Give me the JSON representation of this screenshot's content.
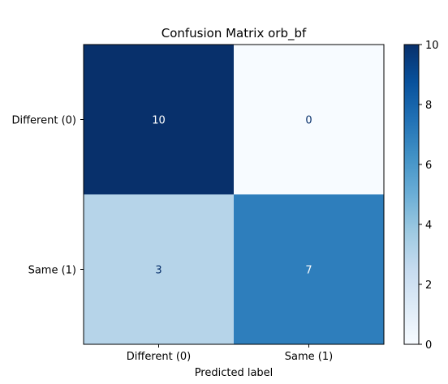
{
  "chart_data": {
    "type": "heatmap",
    "title": "Confusion Matrix orb_bf",
    "xlabel": "Predicted label",
    "ylabel": "",
    "x_categories": [
      "Different (0)",
      "Same (1)"
    ],
    "y_categories": [
      "Different (0)",
      "Same (1)"
    ],
    "matrix": [
      [
        10,
        0
      ],
      [
        3,
        7
      ]
    ],
    "colormap": "Blues",
    "vmin": 0,
    "vmax": 10,
    "colorbar_ticks": [
      0,
      2,
      4,
      6,
      8,
      10
    ],
    "colors": {
      "light_text": "#ffffff",
      "dark_text": "#08306b"
    }
  }
}
